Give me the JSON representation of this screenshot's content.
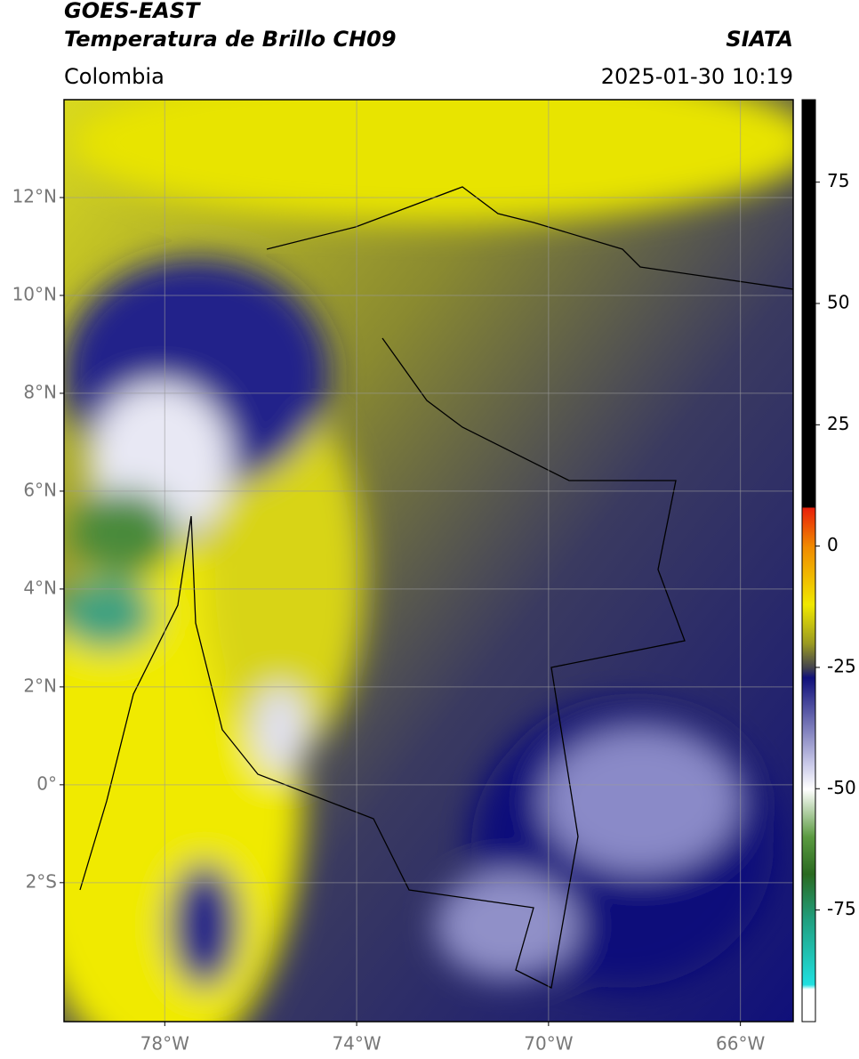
{
  "header": {
    "satellite": "GOES-EAST",
    "product": "Temperatura de Brillo CH09",
    "region": "Colombia",
    "source": "SIATA",
    "datetime": "2025-01-30 10:19"
  },
  "map": {
    "xlim": [
      -80.1,
      -64.9
    ],
    "ylim": [
      -4.84,
      14.0
    ],
    "yticks": [
      {
        "value": 12,
        "label": "12°N"
      },
      {
        "value": 10,
        "label": "10°N"
      },
      {
        "value": 8,
        "label": "8°N"
      },
      {
        "value": 6,
        "label": "6°N"
      },
      {
        "value": 4,
        "label": "4°N"
      },
      {
        "value": 2,
        "label": "2°N"
      },
      {
        "value": 0,
        "label": "0°"
      },
      {
        "value": -2,
        "label": "2°S"
      }
    ],
    "xticks": [
      {
        "value": -78,
        "label": "78°W"
      },
      {
        "value": -74,
        "label": "74°W"
      },
      {
        "value": -70,
        "label": "70°W"
      },
      {
        "value": -66,
        "label": "66°W"
      }
    ],
    "grid": true
  },
  "colorbar": {
    "lim": [
      -98,
      92
    ],
    "ticks": [
      75,
      50,
      25,
      0,
      -25,
      -50,
      -75
    ]
  }
}
